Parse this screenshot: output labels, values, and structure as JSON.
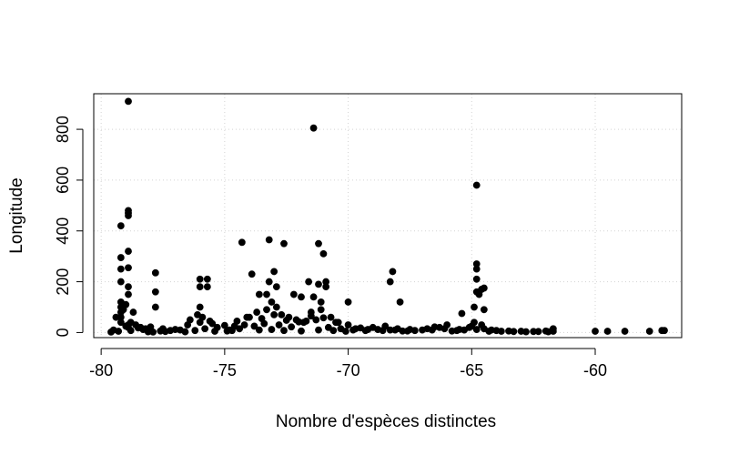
{
  "chart_data": {
    "type": "scatter",
    "title": "",
    "xlabel": "Nombre d'espèces distinctes",
    "ylabel": "Longitude",
    "xlim": [
      -80.3,
      -56.5
    ],
    "ylim": [
      -20,
      940
    ],
    "x_ticks": [
      -80,
      -75,
      -70,
      -65,
      -60
    ],
    "y_ticks": [
      0,
      200,
      400,
      600,
      800
    ],
    "x_tick_labels": [
      "-80",
      "-75",
      "-70",
      "-65",
      "-60"
    ],
    "y_tick_labels": [
      "0",
      "200",
      "400",
      "600",
      "800"
    ],
    "grid": true,
    "grid_style": "dotted",
    "marker_color": "#000000",
    "series": [
      {
        "x": [
          -78.9,
          -71.4,
          -64.8,
          -78.9,
          -78.9,
          -78.9,
          -79.2,
          -78.9,
          -79.2,
          -79.2,
          -78.9,
          -79.2,
          -78.9,
          -79.2,
          -79.2,
          -79.2,
          -79.2,
          -79.2,
          -78.9,
          -78.9,
          -78.9,
          -78.7,
          -77.8,
          -77.8,
          -77.8,
          -76.0,
          -76.0,
          -75.7,
          -75.7,
          -76.0,
          -74.3,
          -73.9,
          -73.6,
          -73.2,
          -73.2,
          -72.9,
          -72.6,
          -73.0,
          -73.1,
          -73.3,
          -72.2,
          -71.9,
          -71.6,
          -71.2,
          -71.2,
          -71.0,
          -70.9,
          -70.9,
          -71.4,
          -71.1,
          -70.0,
          -68.2,
          -68.3,
          -67.9,
          -64.8,
          -64.8,
          -64.8,
          -64.8,
          -64.7,
          -64.6,
          -64.5,
          -64.9,
          -64.5,
          -65.4,
          -61.7,
          -60.0,
          -59.5,
          -58.8,
          -57.8,
          -57.3,
          -57.2,
          -79.5,
          -79.0,
          -78.5,
          -78.0,
          -77.5,
          -77.0,
          -76.5,
          -76.0,
          -75.5,
          -75.0,
          -74.5,
          -74.0,
          -73.5,
          -73.0,
          -72.5,
          -72.0,
          -71.5,
          -71.0,
          -70.5,
          -70.0,
          -69.5,
          -69.0,
          -68.5,
          -68.0,
          -67.5,
          -67.0,
          -66.5,
          -66.0,
          -65.5,
          -65.0,
          -64.5,
          -64.0,
          -63.5,
          -63.0,
          -62.5,
          -62.0,
          -61.7,
          -79.3,
          -78.8,
          -78.3,
          -77.6,
          -76.8,
          -76.2,
          -75.8,
          -75.3,
          -74.8,
          -74.2,
          -73.8,
          -73.4,
          -72.8,
          -72.3,
          -71.8,
          -71.3,
          -70.8,
          -70.3,
          -69.8,
          -69.3,
          -68.8,
          -68.3,
          -67.8,
          -67.3,
          -66.8,
          -66.3,
          -65.8,
          -65.3,
          -64.8,
          -64.3,
          -63.8,
          -63.3,
          -62.8,
          -62.3,
          -61.9,
          -79.4,
          -79.1,
          -79.0,
          -78.8,
          -78.6,
          -78.4,
          -78.2,
          -77.2,
          -76.4,
          -76.1,
          -75.9,
          -75.6,
          -74.6,
          -74.4,
          -74.1,
          -73.7,
          -73.3,
          -72.9,
          -72.7,
          -72.4,
          -72.1,
          -71.7,
          -71.5,
          -71.1,
          -70.7,
          -70.4,
          -69.7,
          -69.2,
          -68.6,
          -68.1,
          -67.6,
          -66.6,
          -66.1,
          -65.6,
          -65.1,
          -64.9,
          -64.6,
          -64.2,
          -79.6,
          -78.1,
          -77.9,
          -77.4,
          -76.6,
          -75.4,
          -74.9,
          -74.7,
          -73.6,
          -73.1,
          -72.6,
          -71.9,
          -71.2,
          -70.6,
          -70.1
        ],
        "y": [
          910,
          805,
          580,
          480,
          470,
          460,
          420,
          320,
          295,
          250,
          255,
          200,
          180,
          120,
          100,
          80,
          60,
          40,
          30,
          20,
          150,
          80,
          235,
          160,
          100,
          210,
          180,
          210,
          180,
          100,
          355,
          230,
          150,
          365,
          200,
          180,
          350,
          240,
          120,
          150,
          150,
          140,
          200,
          350,
          190,
          310,
          180,
          200,
          140,
          120,
          120,
          240,
          200,
          120,
          270,
          250,
          210,
          160,
          150,
          170,
          175,
          100,
          90,
          75,
          15,
          5,
          5,
          5,
          5,
          8,
          8,
          10,
          25,
          18,
          22,
          15,
          12,
          30,
          40,
          35,
          28,
          45,
          60,
          55,
          70,
          48,
          42,
          65,
          58,
          40,
          30,
          18,
          20,
          25,
          15,
          12,
          10,
          22,
          30,
          12,
          25,
          15,
          8,
          6,
          5,
          4,
          6,
          5,
          5,
          8,
          12,
          6,
          10,
          8,
          15,
          20,
          10,
          30,
          25,
          35,
          30,
          22,
          40,
          50,
          20,
          15,
          10,
          8,
          12,
          10,
          6,
          8,
          15,
          20,
          6,
          10,
          12,
          5,
          5,
          4,
          3,
          4,
          3,
          60,
          90,
          110,
          40,
          30,
          20,
          15,
          8,
          50,
          70,
          60,
          45,
          25,
          15,
          60,
          80,
          90,
          100,
          70,
          60,
          50,
          45,
          80,
          90,
          60,
          40,
          15,
          12,
          8,
          10,
          6,
          10,
          15,
          8,
          20,
          40,
          30,
          10,
          2,
          3,
          2,
          4,
          3,
          5,
          6,
          8,
          10,
          12,
          8,
          6,
          10,
          8,
          5
        ]
      }
    ]
  }
}
